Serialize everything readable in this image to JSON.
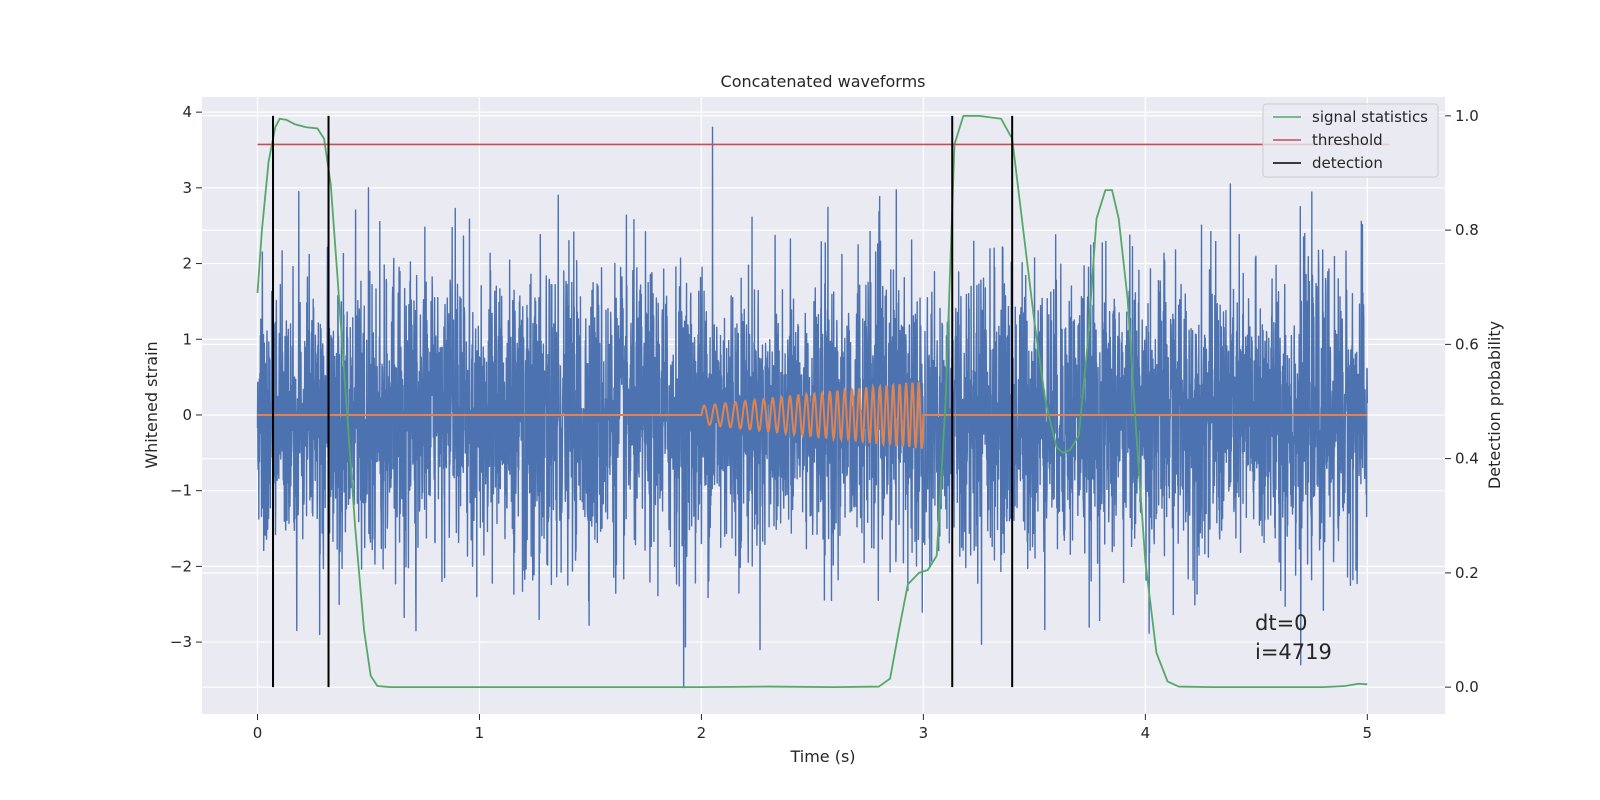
{
  "chart_data": {
    "type": "line",
    "title": "Concatenated waveforms",
    "xlabel": "Time (s)",
    "ylabel": "Whitened strain",
    "y2label": "Detection probability",
    "xlim": [
      -0.25,
      5.35
    ],
    "ylim": [
      -3.95,
      4.2
    ],
    "y2lim": [
      -0.047,
      1.033
    ],
    "xticks": [
      0,
      1,
      2,
      3,
      4,
      5
    ],
    "yticks": [
      -3,
      -2,
      -1,
      0,
      1,
      2,
      3,
      4
    ],
    "y2ticks": [
      0.0,
      0.2,
      0.4,
      0.6,
      0.8,
      1.0
    ],
    "xticklabels": [
      "0",
      "1",
      "2",
      "3",
      "4",
      "5"
    ],
    "yticklabels": [
      "−3",
      "−2",
      "−1",
      "0",
      "1",
      "2",
      "3",
      "4"
    ],
    "y2ticklabels": [
      "0.0",
      "0.2",
      "0.4",
      "0.6",
      "0.8",
      "1.0"
    ],
    "grid": true,
    "legend_position": "top-right",
    "colors": {
      "strain": "#4c72b0",
      "template": "#dd8452",
      "signal": "#55a868",
      "threshold": "#c44e52",
      "detection": "#000000",
      "background": "#eaeaf2",
      "grid": "#ffffff"
    },
    "series": [
      {
        "name": "",
        "axis": "left",
        "kind": "noise",
        "x_range": [
          0,
          5
        ],
        "note_envelope_p99": 2.4,
        "extremes": [
          {
            "x": 2.05,
            "y": 3.8
          },
          {
            "x": 1.92,
            "y": -3.6
          },
          {
            "x": 0.5,
            "y": 3.0
          },
          {
            "x": 0.28,
            "y": -2.9
          },
          {
            "x": 4.7,
            "y": -3.3
          }
        ]
      },
      {
        "name": "",
        "axis": "left",
        "kind": "chirp",
        "x_range": [
          0,
          5
        ],
        "chirp_start": 2.0,
        "chirp_end": 3.0,
        "amplitude_start": 0.12,
        "amplitude_end": 0.45
      },
      {
        "name": "signal statistics",
        "axis": "right",
        "x": [
          0,
          0.02,
          0.05,
          0.08,
          0.1,
          0.13,
          0.17,
          0.22,
          0.27,
          0.3,
          0.33,
          0.36,
          0.4,
          0.44,
          0.48,
          0.51,
          0.54,
          0.6,
          1.0,
          2.0,
          2.3,
          2.6,
          2.8,
          2.85,
          2.89,
          2.93,
          2.98,
          3.02,
          3.06,
          3.1,
          3.14,
          3.18,
          3.25,
          3.35,
          3.4,
          3.45,
          3.5,
          3.55,
          3.6,
          3.63,
          3.66,
          3.7,
          3.74,
          3.78,
          3.82,
          3.85,
          3.88,
          3.92,
          3.96,
          4.0,
          4.05,
          4.1,
          4.15,
          4.3,
          4.6,
          4.8,
          4.9,
          4.96,
          5.0
        ],
        "y": [
          0.69,
          0.8,
          0.92,
          0.98,
          0.995,
          0.993,
          0.985,
          0.98,
          0.978,
          0.96,
          0.88,
          0.72,
          0.5,
          0.28,
          0.1,
          0.02,
          0.002,
          0.0,
          0.0,
          0.0,
          0.001,
          0.0,
          0.001,
          0.015,
          0.1,
          0.18,
          0.2,
          0.205,
          0.23,
          0.5,
          0.95,
          1.0,
          1.0,
          0.995,
          0.96,
          0.8,
          0.64,
          0.5,
          0.42,
          0.41,
          0.415,
          0.44,
          0.6,
          0.82,
          0.87,
          0.87,
          0.82,
          0.68,
          0.44,
          0.22,
          0.06,
          0.01,
          0.001,
          0.0,
          0.0,
          0.0,
          0.002,
          0.006,
          0.005
        ]
      },
      {
        "name": "threshold",
        "axis": "right",
        "x": [
          0,
          5.1
        ],
        "y": [
          0.95,
          0.95
        ]
      },
      {
        "name": "detection",
        "axis": "right",
        "kind": "vlines",
        "x": [
          0.07,
          0.32,
          3.13,
          3.4
        ],
        "y_range": [
          0.0,
          1.0
        ]
      }
    ],
    "annotation": [
      "dt=0",
      "i=4719"
    ]
  }
}
